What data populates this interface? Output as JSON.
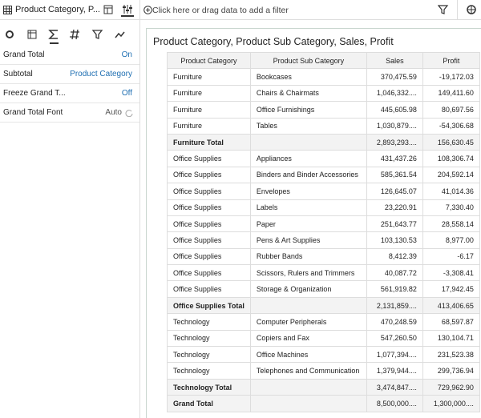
{
  "left_panel": {
    "header": {
      "title": "Product Category, P..."
    },
    "properties": [
      {
        "label": "Grand Total",
        "value": "On"
      },
      {
        "label": "Subtotal",
        "value": "Product Category"
      },
      {
        "label": "Freeze Grand T...",
        "value": "Off"
      },
      {
        "label": "Grand Total Font",
        "value": "Auto"
      }
    ]
  },
  "filter_bar": {
    "placeholder": "Click here or drag data to add a filter"
  },
  "view": {
    "title": "Product Category, Product Sub Category, Sales, Profit",
    "table": {
      "columns": [
        "Product Category",
        "Product Sub Category",
        "Sales",
        "Profit"
      ],
      "groups": [
        {
          "rows": [
            [
              "Furniture",
              "Bookcases",
              "370,475.59",
              "-19,172.03"
            ],
            [
              "Furniture",
              "Chairs & Chairmats",
              "1,046,332....",
              "149,411.60"
            ],
            [
              "Furniture",
              "Office Furnishings",
              "445,605.98",
              "80,697.56"
            ],
            [
              "Furniture",
              "Tables",
              "1,030,879....",
              "-54,306.68"
            ]
          ],
          "total": [
            "Furniture Total",
            "2,893,293....",
            "156,630.45"
          ]
        },
        {
          "rows": [
            [
              "Office Supplies",
              "Appliances",
              "431,437.26",
              "108,306.74"
            ],
            [
              "Office Supplies",
              "Binders and Binder Accessories",
              "585,361.54",
              "204,592.14"
            ],
            [
              "Office Supplies",
              "Envelopes",
              "126,645.07",
              "41,014.36"
            ],
            [
              "Office Supplies",
              "Labels",
              "23,220.91",
              "7,330.40"
            ],
            [
              "Office Supplies",
              "Paper",
              "251,643.77",
              "28,558.14"
            ],
            [
              "Office Supplies",
              "Pens & Art Supplies",
              "103,130.53",
              "8,977.00"
            ],
            [
              "Office Supplies",
              "Rubber Bands",
              "8,412.39",
              "-6.17"
            ],
            [
              "Office Supplies",
              "Scissors, Rulers and Trimmers",
              "40,087.72",
              "-3,308.41"
            ],
            [
              "Office Supplies",
              "Storage & Organization",
              "561,919.82",
              "17,942.45"
            ]
          ],
          "total": [
            "Office Supplies Total",
            "2,131,859....",
            "413,406.65"
          ]
        },
        {
          "rows": [
            [
              "Technology",
              "Computer Peripherals",
              "470,248.59",
              "68,597.87"
            ],
            [
              "Technology",
              "Copiers and Fax",
              "547,260.50",
              "130,104.71"
            ],
            [
              "Technology",
              "Office Machines",
              "1,077,394....",
              "231,523.38"
            ],
            [
              "Technology",
              "Telephones and Communication",
              "1,379,944....",
              "299,736.94"
            ]
          ],
          "total": [
            "Technology Total",
            "3,474,847....",
            "729,962.90"
          ]
        }
      ],
      "grand_total": [
        "Grand Total",
        "8,500,000....",
        "1,300,000...."
      ]
    }
  }
}
